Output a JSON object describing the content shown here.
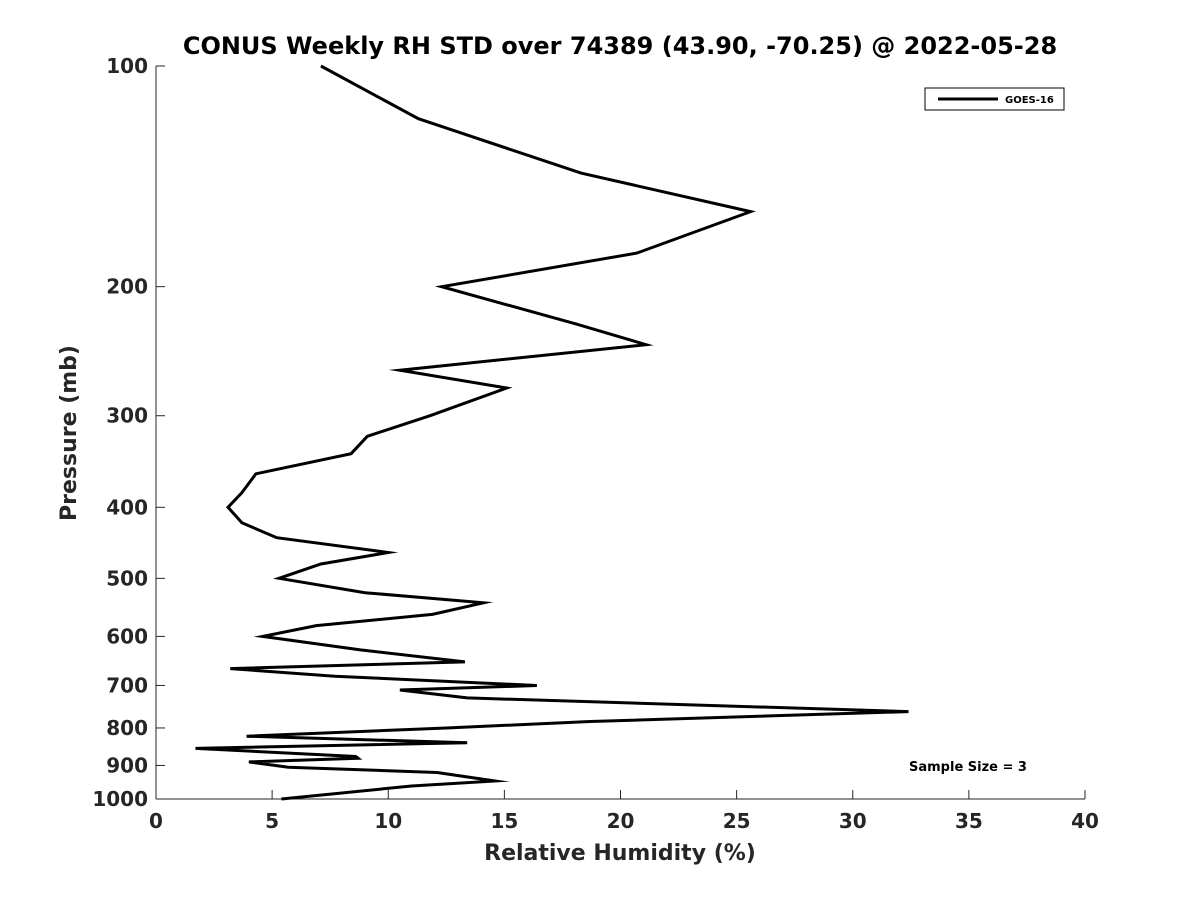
{
  "chart_data": {
    "type": "line",
    "title": "CONUS Weekly RH STD over 74389 (43.90, -70.25) @ 2022-05-28",
    "xlabel": "Relative Humidity (%)",
    "ylabel": "Pressure (mb)",
    "xlim": [
      0,
      40
    ],
    "ylim": [
      100,
      1000
    ],
    "y_scale": "log",
    "y_reversed": true,
    "x_ticks": [
      "0",
      "5",
      "10",
      "15",
      "20",
      "25",
      "30",
      "35",
      "40"
    ],
    "y_ticks": [
      "100",
      "200",
      "300",
      "400",
      "500",
      "600",
      "700",
      "800",
      "900",
      "1000"
    ],
    "grid": false,
    "legend_position": "top-right",
    "series": [
      {
        "name": "GOES-16",
        "color": "#000000",
        "points": [
          [
            7.1,
            100
          ],
          [
            11.3,
            118
          ],
          [
            18.3,
            140
          ],
          [
            25.6,
            158
          ],
          [
            20.7,
            180
          ],
          [
            12.3,
            200
          ],
          [
            18.1,
            225
          ],
          [
            21.1,
            240
          ],
          [
            10.5,
            260
          ],
          [
            15.1,
            275
          ],
          [
            11.8,
            300
          ],
          [
            9.1,
            320
          ],
          [
            8.4,
            338
          ],
          [
            4.3,
            360
          ],
          [
            3.7,
            382
          ],
          [
            3.1,
            400
          ],
          [
            3.7,
            420
          ],
          [
            5.2,
            440
          ],
          [
            10.0,
            461
          ],
          [
            7.1,
            478
          ],
          [
            5.3,
            500
          ],
          [
            9.0,
            523
          ],
          [
            14.1,
            540
          ],
          [
            11.9,
            560
          ],
          [
            6.9,
            580
          ],
          [
            4.6,
            600
          ],
          [
            8.8,
            626
          ],
          [
            13.3,
            650
          ],
          [
            3.2,
            664
          ],
          [
            7.7,
            680
          ],
          [
            16.4,
            700
          ],
          [
            10.5,
            710
          ],
          [
            13.4,
            728
          ],
          [
            32.4,
            760
          ],
          [
            18.7,
            784
          ],
          [
            12.5,
            800
          ],
          [
            3.9,
            821
          ],
          [
            13.4,
            838
          ],
          [
            1.7,
            853
          ],
          [
            8.6,
            875
          ],
          [
            8.7,
            880
          ],
          [
            4.0,
            890
          ],
          [
            5.7,
            905
          ],
          [
            12.1,
            920
          ],
          [
            14.6,
            945
          ],
          [
            11.0,
            960
          ],
          [
            5.4,
            1000
          ]
        ]
      }
    ],
    "annotations": [
      "Sample Size = 3"
    ]
  }
}
